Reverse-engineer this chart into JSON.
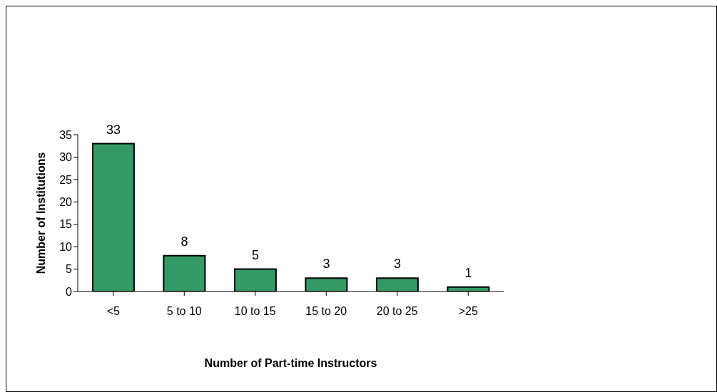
{
  "chart_data": {
    "type": "bar",
    "xlabel": "Number of Part-time Instructors",
    "ylabel": "Number of Institutions",
    "categories": [
      "<5",
      "5 to 10",
      "10 to 15",
      "15 to 20",
      "20 to 25",
      ">25"
    ],
    "values": [
      33,
      8,
      5,
      3,
      3,
      1
    ],
    "color": "#339966",
    "ylim": [
      0,
      35
    ],
    "yticks": [
      0,
      5,
      10,
      15,
      20,
      25,
      30,
      35
    ],
    "grid": false,
    "data_labels": true
  }
}
